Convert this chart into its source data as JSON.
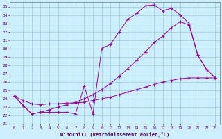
{
  "xlabel": "Windchill (Refroidissement éolien,°C)",
  "background_color": "#cceeff",
  "line_color": "#990099",
  "grid_color": "#99cccc",
  "xlim": [
    -0.5,
    23.5
  ],
  "ylim": [
    21,
    35.5
  ],
  "xticks": [
    0,
    1,
    2,
    3,
    4,
    5,
    6,
    7,
    8,
    9,
    10,
    11,
    12,
    13,
    14,
    15,
    16,
    17,
    18,
    19,
    20,
    21,
    22,
    23
  ],
  "yticks": [
    21,
    22,
    23,
    24,
    25,
    26,
    27,
    28,
    29,
    30,
    31,
    32,
    33,
    34,
    35
  ],
  "series1_x": [
    0,
    1,
    2,
    3,
    4,
    5,
    6,
    7,
    8,
    9,
    10,
    11,
    12,
    13,
    14,
    15,
    16,
    17,
    18,
    19,
    20,
    21,
    22,
    23
  ],
  "series1_y": [
    24.3,
    23.2,
    22.2,
    22.4,
    22.4,
    22.4,
    22.4,
    22.2,
    25.5,
    22.2,
    30.0,
    30.5,
    32.0,
    33.5,
    34.2,
    35.1,
    35.2,
    34.5,
    34.8,
    34.0,
    33.0,
    29.2,
    27.5,
    26.5
  ],
  "series2_x": [
    0,
    1,
    2,
    3,
    4,
    5,
    6,
    7,
    8,
    9,
    10,
    11,
    12,
    13,
    14,
    15,
    16,
    17,
    18,
    19,
    20,
    21,
    22,
    23
  ],
  "series2_y": [
    24.3,
    23.2,
    22.2,
    22.4,
    22.7,
    23.0,
    23.3,
    23.6,
    24.0,
    24.5,
    25.1,
    25.8,
    26.7,
    27.6,
    28.6,
    29.6,
    30.7,
    31.5,
    32.5,
    33.2,
    32.8,
    29.2,
    27.5,
    26.5
  ],
  "series3_x": [
    0,
    1,
    2,
    3,
    4,
    5,
    6,
    7,
    8,
    9,
    10,
    11,
    12,
    13,
    14,
    15,
    16,
    17,
    18,
    19,
    20,
    21,
    22,
    23
  ],
  "series3_y": [
    24.3,
    23.8,
    23.4,
    23.3,
    23.4,
    23.4,
    23.5,
    23.5,
    23.6,
    23.8,
    24.0,
    24.2,
    24.5,
    24.8,
    25.1,
    25.4,
    25.7,
    26.0,
    26.2,
    26.4,
    26.5,
    26.5,
    26.5,
    26.5
  ]
}
